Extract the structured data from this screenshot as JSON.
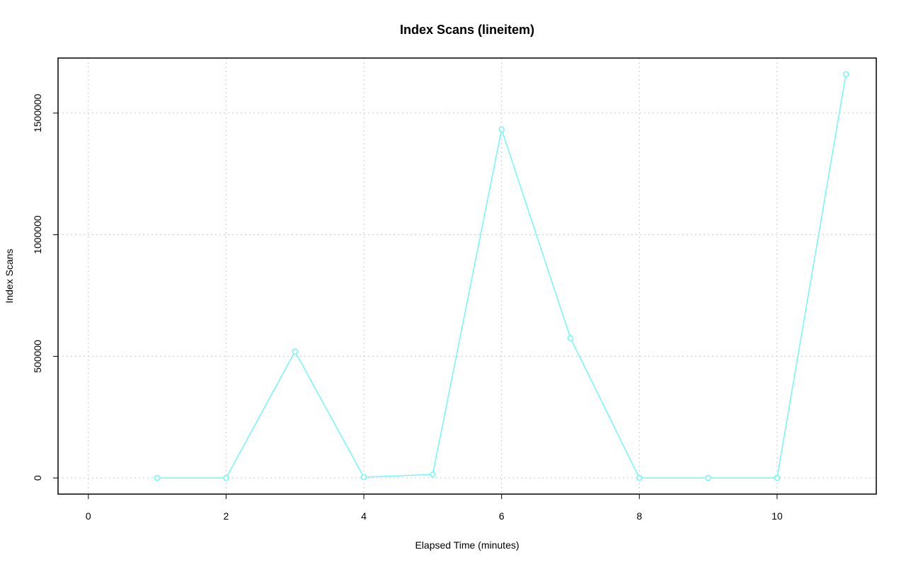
{
  "chart_data": {
    "type": "line",
    "title": "Index Scans (lineitem)",
    "x_label": "Elapsed Time (minutes)",
    "y_label": "Index Scans",
    "x": [
      1,
      2,
      3,
      4,
      5,
      6,
      7,
      8,
      9,
      10,
      11
    ],
    "series": [
      {
        "name": "Index Scans",
        "color": "#70f8f8",
        "values": [
          0,
          0,
          520000,
          3000,
          14500,
          1433000,
          575000,
          0,
          0,
          0,
          1660000
        ]
      }
    ],
    "xlim": [
      -0.44,
      11.44
    ],
    "xticks": [
      0,
      2,
      4,
      6,
      8,
      10
    ],
    "ylim": [
      -66400,
      1726400
    ],
    "yticks": [
      0,
      500000,
      1000000,
      1500000
    ],
    "grid": true
  }
}
